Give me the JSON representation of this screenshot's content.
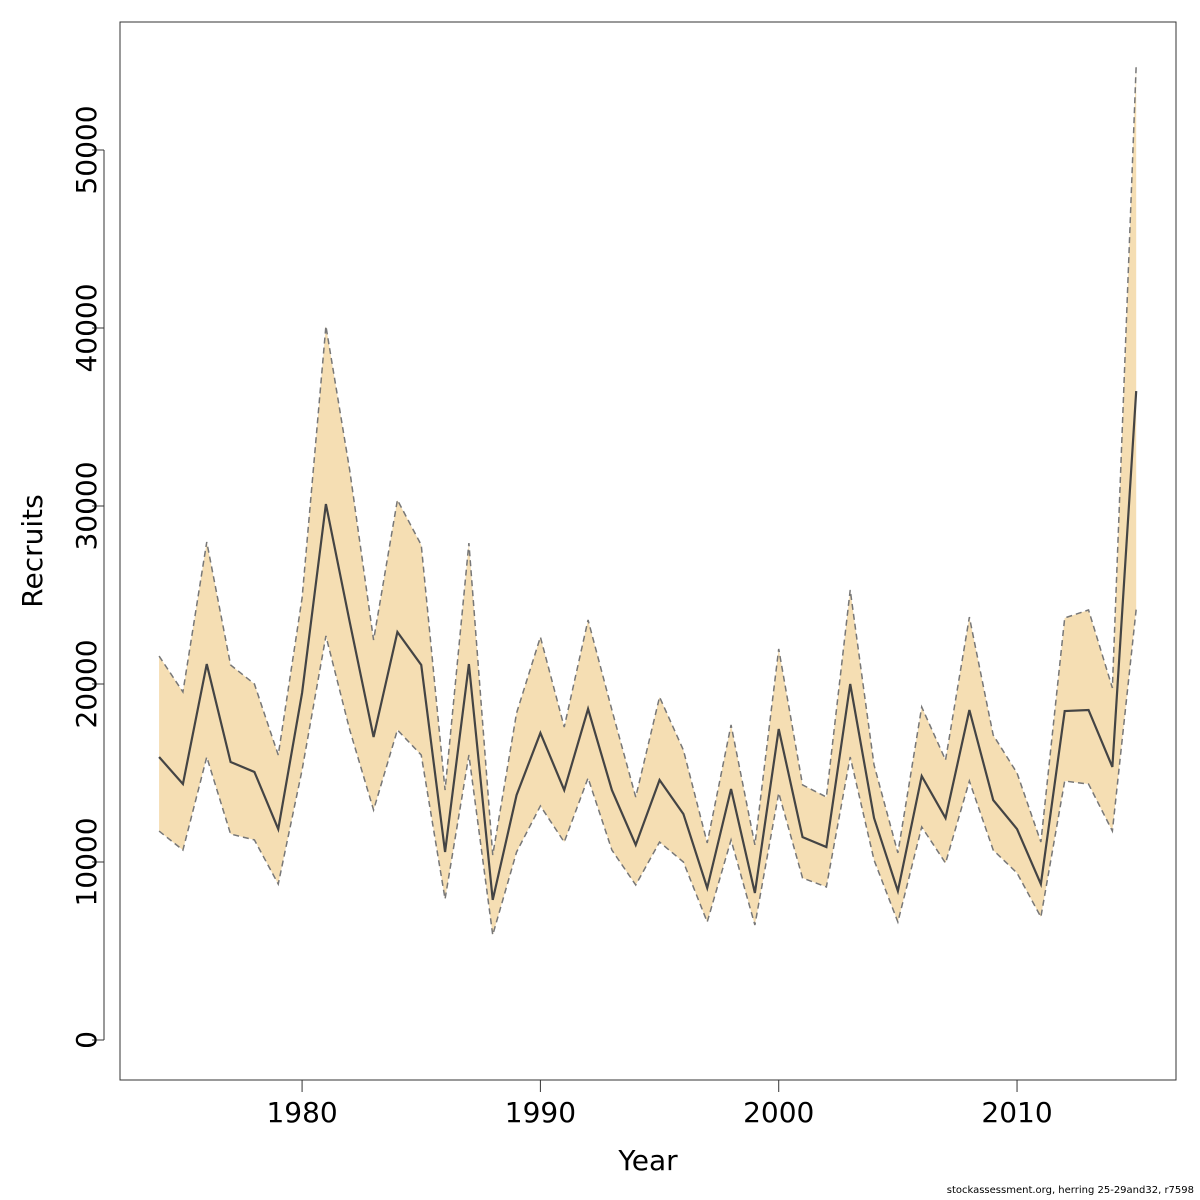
{
  "chart_data": {
    "type": "line",
    "xlabel": "Year",
    "ylabel": "Recruits",
    "footnote": "stockassessment.org, herring 25-29and32, r7598",
    "x": [
      1974,
      1975,
      1976,
      1977,
      1978,
      1979,
      1980,
      1981,
      1982,
      1983,
      1984,
      1985,
      1986,
      1987,
      1988,
      1989,
      1990,
      1991,
      1992,
      1993,
      1994,
      1995,
      1996,
      1997,
      1998,
      1999,
      2000,
      2001,
      2002,
      2003,
      2004,
      2005,
      2006,
      2007,
      2008,
      2009,
      2010,
      2011,
      2012,
      2013,
      2014,
      2015
    ],
    "values": [
      15900,
      14380,
      21120,
      15620,
      15060,
      11850,
      19500,
      30110,
      23480,
      17020,
      22920,
      21070,
      10560,
      21120,
      7870,
      13760,
      17250,
      14040,
      18600,
      14040,
      10960,
      14610,
      12700,
      8540,
      14100,
      8260,
      17470,
      11400,
      10840,
      20000,
      12470,
      8370,
      14830,
      12470,
      18540,
      13480,
      11850,
      8760,
      18480,
      18540,
      15340,
      36460
    ],
    "upper": [
      21570,
      19550,
      27980,
      21070,
      20000,
      16010,
      24830,
      40110,
      32000,
      22470,
      30340,
      27810,
      14040,
      27920,
      10390,
      18370,
      22640,
      17580,
      23600,
      18540,
      13650,
      19270,
      16290,
      11070,
      17700,
      10960,
      21970,
      14330,
      13650,
      25280,
      15450,
      10510,
      18710,
      15730,
      23760,
      17130,
      15000,
      11120,
      23710,
      24160,
      19780,
      54780
    ],
    "lower": [
      11740,
      10670,
      15900,
      11570,
      11240,
      8760,
      15170,
      22700,
      17420,
      12920,
      17420,
      16010,
      7920,
      16010,
      5900,
      10560,
      13150,
      11120,
      14720,
      10670,
      8710,
      11120,
      10000,
      6630,
      11240,
      6460,
      13880,
      9100,
      8600,
      15900,
      10110,
      6630,
      11970,
      9940,
      14550,
      10670,
      9380,
      6910,
      14550,
      14380,
      11740,
      24210
    ],
    "color": "#444444",
    "band_color": "#f5deb3",
    "band_edge_color": "#777777",
    "xlim": [
      1972.36,
      2016.67
    ],
    "xticks": [
      1980,
      1990,
      2000,
      2010
    ],
    "ylim": [
      -2247,
      57191
    ],
    "yticks": [
      0,
      10000,
      20000,
      30000,
      40000,
      50000
    ]
  }
}
